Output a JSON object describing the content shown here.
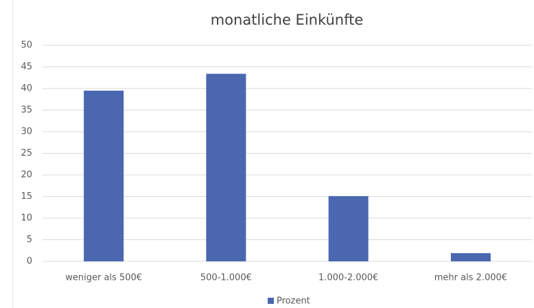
{
  "chart_data": {
    "type": "bar",
    "title": "monatliche Einkünfte",
    "categories": [
      "weniger als 500€",
      "500-1.000€",
      "1.000-2.000€",
      "mehr als 2.000€"
    ],
    "series": [
      {
        "name": "Prozent",
        "color": "#4a67b0",
        "values": [
          39.5,
          43.4,
          15.1,
          1.9
        ]
      }
    ],
    "ylim": [
      0,
      50
    ],
    "yticks": [
      0,
      5,
      10,
      15,
      20,
      25,
      30,
      35,
      40,
      45,
      50
    ],
    "grid": true,
    "legend": "bottom"
  }
}
